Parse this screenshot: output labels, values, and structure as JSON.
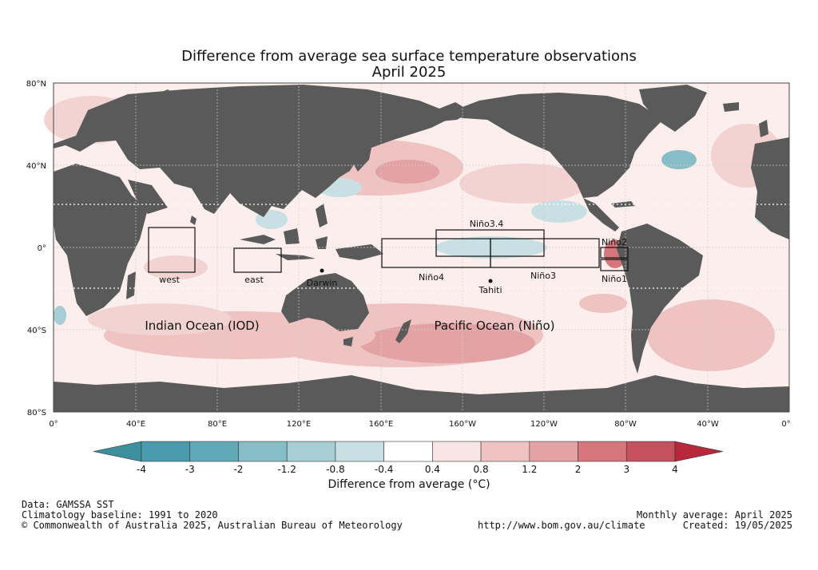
{
  "title": {
    "line1": "Difference from average sea surface temperature observations",
    "line2": "April 2025"
  },
  "axes": {
    "lat_ticks": [
      "80°N",
      "40°N",
      "0°",
      "40°S",
      "80°S"
    ],
    "lon_ticks": [
      "0°",
      "40°E",
      "80°E",
      "120°E",
      "160°E",
      "160°W",
      "120°W",
      "80°W",
      "40°W",
      "0°"
    ]
  },
  "regions": {
    "iod_west": "west",
    "iod_east": "east",
    "nino34": "Niño3.4",
    "nino4": "Niño4",
    "nino3": "Niño3",
    "nino2": "Niño2",
    "nino1": "Niño1"
  },
  "places": {
    "darwin": "Darwin",
    "tahiti": "Tahiti"
  },
  "ocean_labels": {
    "indian": "Indian Ocean (IOD)",
    "pacific": "Pacific Ocean (Niño)"
  },
  "colorbar": {
    "ticks": [
      "-4",
      "-3",
      "-2",
      "-1.2",
      "-0.8",
      "-0.4",
      "0.4",
      "0.8",
      "1.2",
      "2",
      "3",
      "4"
    ],
    "colors": [
      "#4a9bab",
      "#62a9b8",
      "#86bdc7",
      "#a7cdd5",
      "#c8dfe3",
      "#ffffff",
      "#f8e4e2",
      "#efc3c2",
      "#e3a3a5",
      "#d5767d",
      "#c5505e"
    ],
    "under_color": "#3e8f9e",
    "over_color": "#b8283c",
    "label": "Difference from average (°C)"
  },
  "footer": {
    "data": "Data: GAMSSA SST",
    "baseline": "Climatology baseline: 1991 to 2020",
    "copyright": "© Commonwealth of Australia 2025, Australian Bureau of Meteorology",
    "url": "http://www.bom.gov.au/climate",
    "monthly": "Monthly average: April 2025",
    "created": "Created: 19/05/2025"
  },
  "colors": {
    "land": "#5a5a5a",
    "ocean_warm": "#f3d3d2",
    "ocean_warm2": "#e6a9ab",
    "ocean_cool": "#b9d8df"
  }
}
